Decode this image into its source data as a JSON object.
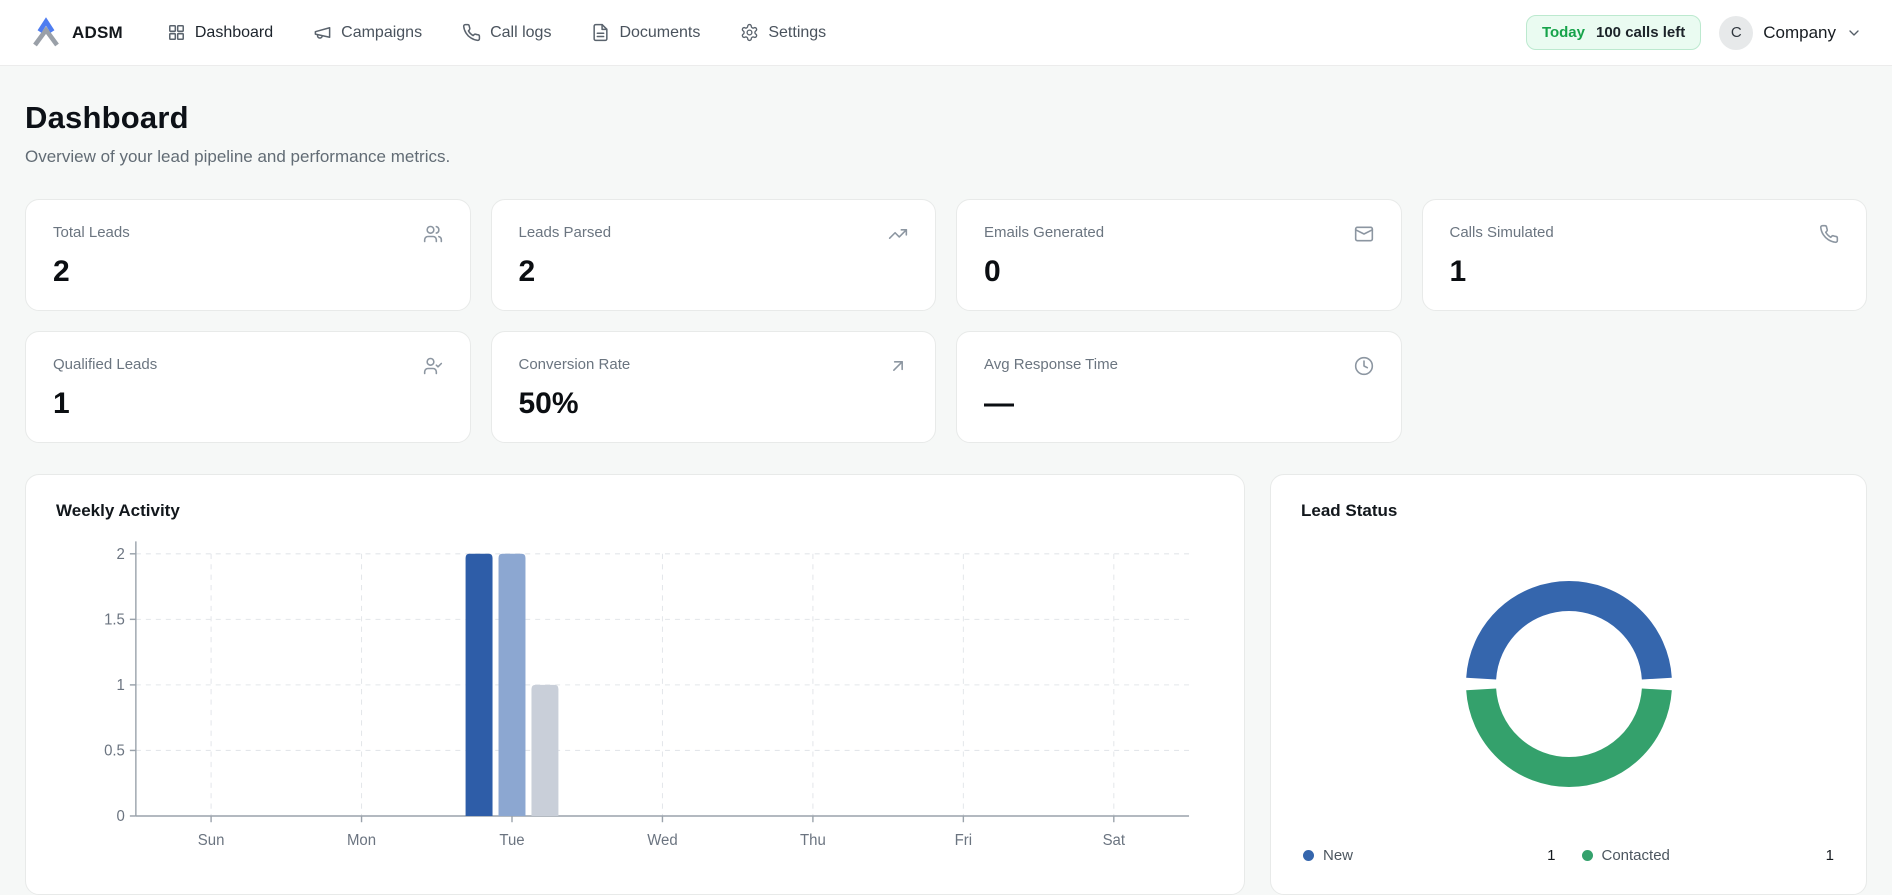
{
  "brand": {
    "name": "ADSM"
  },
  "nav": {
    "items": [
      {
        "label": "Dashboard",
        "icon": "dashboard-grid-icon",
        "active": true
      },
      {
        "label": "Campaigns",
        "icon": "megaphone-icon",
        "active": false
      },
      {
        "label": "Call logs",
        "icon": "phone-icon",
        "active": false
      },
      {
        "label": "Documents",
        "icon": "document-icon",
        "active": false
      },
      {
        "label": "Settings",
        "icon": "gear-icon",
        "active": false
      }
    ]
  },
  "header_right": {
    "badge": {
      "prefix": "Today",
      "text": "100 calls left"
    },
    "avatar_initial": "C",
    "account_name": "Company"
  },
  "page": {
    "title": "Dashboard",
    "subtitle": "Overview of your lead pipeline and performance metrics."
  },
  "stats": [
    {
      "label": "Total Leads",
      "value": "2",
      "icon": "users-icon"
    },
    {
      "label": "Leads Parsed",
      "value": "2",
      "icon": "trending-up-icon"
    },
    {
      "label": "Emails Generated",
      "value": "0",
      "icon": "mail-icon"
    },
    {
      "label": "Calls Simulated",
      "value": "1",
      "icon": "phone-icon"
    },
    {
      "label": "Qualified Leads",
      "value": "1",
      "icon": "user-check-icon"
    },
    {
      "label": "Conversion Rate",
      "value": "50%",
      "icon": "arrow-up-right-icon"
    },
    {
      "label": "Avg Response Time",
      "value": "—",
      "icon": "clock-icon"
    }
  ],
  "colors": {
    "badge_green": "#16a34a",
    "bar_dark_blue": "#2e5da8",
    "bar_light_blue": "#8ca7d1",
    "bar_gray": "#c9cfd9",
    "donut_blue": "#3566ad",
    "donut_green": "#34a16c"
  },
  "chart_data": [
    {
      "type": "bar",
      "title": "Weekly Activity",
      "categories": [
        "Sun",
        "Mon",
        "Tue",
        "Wed",
        "Thu",
        "Fri",
        "Sat"
      ],
      "series": [
        {
          "name": "series-1",
          "color": "#2e5da8",
          "values": [
            0,
            0,
            2,
            0,
            0,
            0,
            0
          ]
        },
        {
          "name": "series-2",
          "color": "#8ca7d1",
          "values": [
            0,
            0,
            2,
            0,
            0,
            0,
            0
          ]
        },
        {
          "name": "series-3",
          "color": "#c9cfd9",
          "values": [
            0,
            0,
            1,
            0,
            0,
            0,
            0
          ]
        }
      ],
      "xlabel": "",
      "ylabel": "",
      "ylim": [
        0,
        2
      ],
      "yticks": [
        0,
        0.5,
        1,
        1.5,
        2
      ],
      "grid": true,
      "legend_position": "none"
    },
    {
      "type": "pie",
      "subtype": "donut",
      "title": "Lead Status",
      "labels": [
        "New",
        "Contacted"
      ],
      "values": [
        1,
        1
      ],
      "colors": [
        "#3566ad",
        "#34a16c"
      ],
      "legend_position": "bottom"
    }
  ]
}
